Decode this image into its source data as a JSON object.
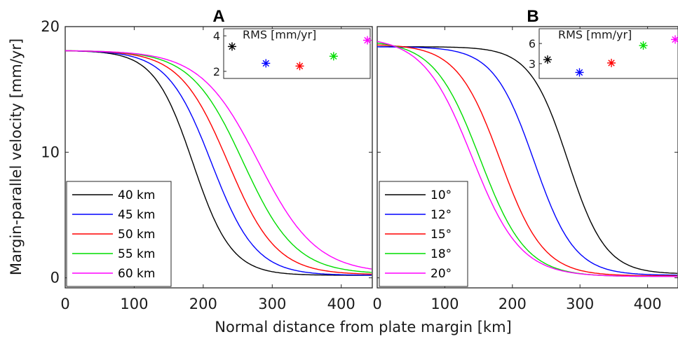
{
  "figure": {
    "ylabel": "Margin-parallel velocity [mm/yr]",
    "xlabel": "Normal distance from plate margin [km]"
  },
  "chart_data": [
    {
      "panel": "A",
      "type": "line",
      "xlim": [
        0,
        445
      ],
      "ylim": [
        -0.8,
        20
      ],
      "xticks": [
        "0",
        "100",
        "200",
        "300",
        "400"
      ],
      "yticks": [
        "0",
        "10",
        "20"
      ],
      "grid": false,
      "legend_position": "bottom-left",
      "series": [
        {
          "name": "40 km",
          "color": "#000000",
          "v0": 18.1,
          "vinf": 0.2,
          "midpoint": 185,
          "width": 28
        },
        {
          "name": "45 km",
          "color": "#0000ff",
          "v0": 18.1,
          "vinf": 0.2,
          "midpoint": 212,
          "width": 32
        },
        {
          "name": "50 km",
          "color": "#ff0000",
          "v0": 18.1,
          "vinf": 0.25,
          "midpoint": 236,
          "width": 35
        },
        {
          "name": "55 km",
          "color": "#00dd00",
          "v0": 18.1,
          "vinf": 0.3,
          "midpoint": 258,
          "width": 38
        },
        {
          "name": "60 km",
          "color": "#ff00ff",
          "v0": 18.1,
          "vinf": 0.35,
          "midpoint": 280,
          "width": 42
        }
      ],
      "inset": {
        "title": "RMS [mm/yr]",
        "yticks": [
          "2",
          "4"
        ],
        "ylim": [
          1.6,
          4.4
        ],
        "points": [
          {
            "series": "40 km",
            "value": 3.4,
            "color": "#000000"
          },
          {
            "series": "45 km",
            "value": 2.45,
            "color": "#0000ff"
          },
          {
            "series": "50 km",
            "value": 2.3,
            "color": "#ff0000"
          },
          {
            "series": "55 km",
            "value": 2.85,
            "color": "#00dd00"
          },
          {
            "series": "60 km",
            "value": 3.75,
            "color": "#ff00ff"
          }
        ]
      }
    },
    {
      "panel": "B",
      "type": "line",
      "xlim": [
        0,
        445
      ],
      "ylim": [
        -0.8,
        20
      ],
      "xticks": [
        "0",
        "100",
        "200",
        "300",
        "400"
      ],
      "grid": false,
      "legend_position": "bottom-left",
      "series": [
        {
          "name": "10°",
          "color": "#000000",
          "v0": 18.4,
          "vinf": 0.3,
          "midpoint": 282,
          "width": 28
        },
        {
          "name": "12°",
          "color": "#0000ff",
          "v0": 18.4,
          "vinf": 0.2,
          "midpoint": 232,
          "width": 30
        },
        {
          "name": "15°",
          "color": "#ff0000",
          "v0": 18.6,
          "vinf": 0.15,
          "midpoint": 182,
          "width": 32
        },
        {
          "name": "18°",
          "color": "#00dd00",
          "v0": 18.9,
          "vinf": 0.1,
          "midpoint": 152,
          "width": 34
        },
        {
          "name": "20°",
          "color": "#ff00ff",
          "v0": 19.2,
          "vinf": 0.1,
          "midpoint": 140,
          "width": 36
        }
      ],
      "inset": {
        "title": "RMS [mm/yr]",
        "yticks": [
          "3",
          "6"
        ],
        "ylim": [
          0.8,
          8.2
        ],
        "points": [
          {
            "series": "10°",
            "value": 3.6,
            "color": "#000000"
          },
          {
            "series": "12°",
            "value": 1.7,
            "color": "#0000ff"
          },
          {
            "series": "15°",
            "value": 3.1,
            "color": "#ff0000"
          },
          {
            "series": "18°",
            "value": 5.7,
            "color": "#00dd00"
          },
          {
            "series": "20°",
            "value": 6.6,
            "color": "#ff00ff"
          }
        ]
      }
    }
  ]
}
